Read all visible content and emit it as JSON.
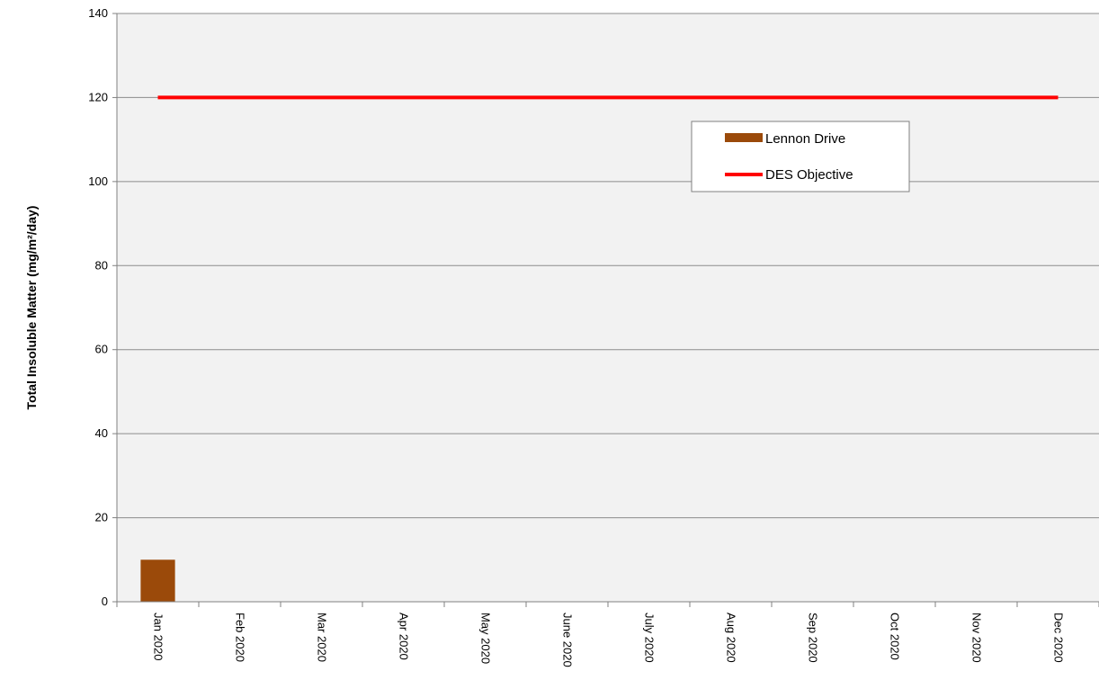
{
  "chart_data": {
    "type": "bar",
    "ylabel": "Total Insoluble Matter (mg/m²/day)",
    "xlabel": "",
    "categories": [
      "Jan 2020",
      "Feb 2020",
      "Mar 2020",
      "Apr 2020",
      "May 2020",
      "June 2020",
      "July 2020",
      "Aug 2020",
      "Sep 2020",
      "Oct 2020",
      "Nov 2020",
      "Dec 2020"
    ],
    "ylim": [
      0,
      140
    ],
    "yticks": [
      0,
      20,
      40,
      60,
      80,
      100,
      120,
      140
    ],
    "grid": true,
    "legend_position": "top-right",
    "series": [
      {
        "name": "Lennon Drive",
        "type": "bar",
        "color": "#9b4a0a",
        "values": [
          10,
          null,
          null,
          null,
          null,
          null,
          null,
          null,
          null,
          null,
          null,
          null
        ]
      },
      {
        "name": "DES Objective",
        "type": "line",
        "color": "#ff0000",
        "values": [
          120,
          120,
          120,
          120,
          120,
          120,
          120,
          120,
          120,
          120,
          120,
          120
        ]
      }
    ]
  }
}
